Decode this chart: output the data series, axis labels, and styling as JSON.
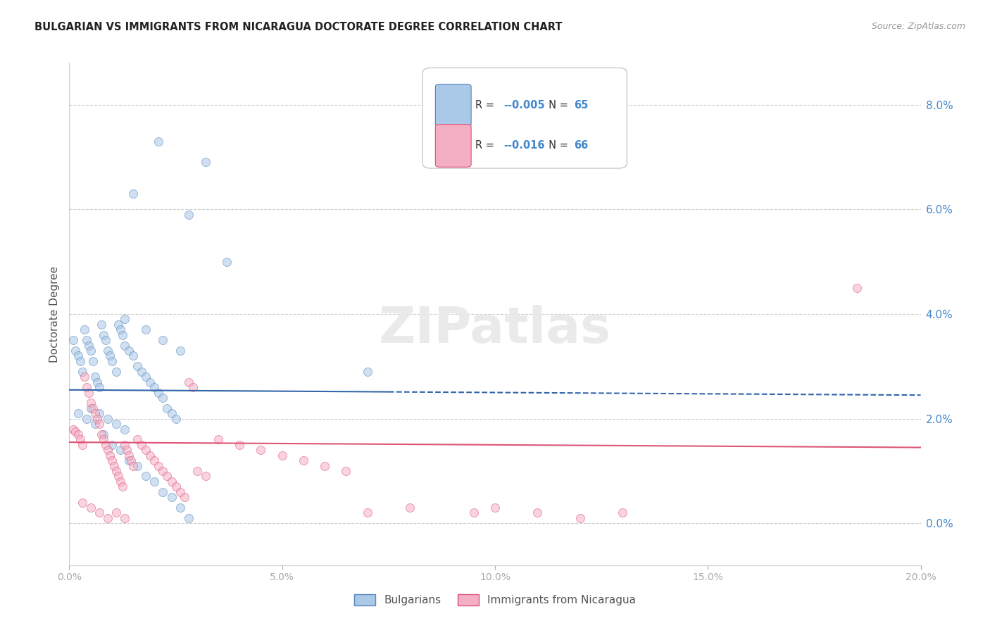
{
  "title": "BULGARIAN VS IMMIGRANTS FROM NICARAGUA DOCTORATE DEGREE CORRELATION CHART",
  "source": "Source: ZipAtlas.com",
  "ylabel": "Doctorate Degree",
  "legend_label1": "Bulgarians",
  "legend_label2": "Immigrants from Nicaragua",
  "color_blue": "#aac8e8",
  "color_pink": "#f5afc5",
  "color_blue_edge": "#5588bb",
  "color_pink_edge": "#dd5577",
  "color_line_blue": "#3366aa",
  "color_line_pink": "#dd5577",
  "title_color": "#222222",
  "source_color": "#999999",
  "axis_label_color": "#555555",
  "right_tick_color": "#4488cc",
  "watermark_color": "#e8e8e8",
  "xmin": 0.0,
  "xmax": 20.0,
  "ymin": -0.8,
  "ymax": 8.8,
  "ytick_vals": [
    0.0,
    2.0,
    4.0,
    6.0,
    8.0
  ],
  "xtick_vals": [
    0.0,
    5.0,
    10.0,
    15.0,
    20.0
  ],
  "blue_line_y0": 2.55,
  "blue_line_y1": 2.45,
  "pink_line_y0": 1.55,
  "pink_line_y1": 1.45,
  "blue_solid_end_x": 7.5,
  "marker_size": 75,
  "alpha": 0.55,
  "background_color": "#ffffff",
  "grid_color": "#cccccc",
  "blue_scatter_x": [
    2.1,
    3.2,
    1.5,
    2.8,
    3.7,
    0.1,
    0.15,
    0.2,
    0.25,
    0.3,
    0.35,
    0.4,
    0.45,
    0.5,
    0.55,
    0.6,
    0.65,
    0.7,
    0.75,
    0.8,
    0.85,
    0.9,
    0.95,
    1.0,
    1.1,
    1.15,
    1.2,
    1.25,
    1.3,
    1.4,
    1.5,
    1.6,
    1.7,
    1.8,
    1.9,
    2.0,
    2.1,
    2.2,
    2.3,
    2.4,
    2.5,
    1.3,
    1.8,
    2.2,
    2.6,
    0.5,
    0.7,
    0.9,
    1.1,
    1.3,
    7.0,
    0.2,
    0.4,
    0.6,
    0.8,
    1.0,
    1.2,
    1.4,
    1.6,
    1.8,
    2.0,
    2.2,
    2.4,
    2.6,
    2.8
  ],
  "blue_scatter_y": [
    7.3,
    6.9,
    6.3,
    5.9,
    5.0,
    3.5,
    3.3,
    3.2,
    3.1,
    2.9,
    3.7,
    3.5,
    3.4,
    3.3,
    3.1,
    2.8,
    2.7,
    2.6,
    3.8,
    3.6,
    3.5,
    3.3,
    3.2,
    3.1,
    2.9,
    3.8,
    3.7,
    3.6,
    3.4,
    3.3,
    3.2,
    3.0,
    2.9,
    2.8,
    2.7,
    2.6,
    2.5,
    2.4,
    2.2,
    2.1,
    2.0,
    3.9,
    3.7,
    3.5,
    3.3,
    2.2,
    2.1,
    2.0,
    1.9,
    1.8,
    2.9,
    2.1,
    2.0,
    1.9,
    1.7,
    1.5,
    1.4,
    1.2,
    1.1,
    0.9,
    0.8,
    0.6,
    0.5,
    0.3,
    0.1
  ],
  "pink_scatter_x": [
    0.1,
    0.15,
    0.2,
    0.25,
    0.3,
    0.35,
    0.4,
    0.45,
    0.5,
    0.55,
    0.6,
    0.65,
    0.7,
    0.75,
    0.8,
    0.85,
    0.9,
    0.95,
    1.0,
    1.05,
    1.1,
    1.15,
    1.2,
    1.25,
    1.3,
    1.35,
    1.4,
    1.45,
    1.5,
    1.6,
    1.7,
    1.8,
    1.9,
    2.0,
    2.1,
    2.2,
    2.3,
    2.4,
    2.5,
    2.6,
    2.7,
    2.8,
    2.9,
    3.0,
    3.2,
    3.5,
    4.0,
    4.5,
    5.0,
    5.5,
    6.0,
    6.5,
    7.0,
    8.0,
    9.5,
    10.0,
    11.0,
    12.0,
    13.0,
    0.3,
    0.5,
    0.7,
    0.9,
    1.1,
    1.3,
    18.5
  ],
  "pink_scatter_y": [
    1.8,
    1.75,
    1.7,
    1.6,
    1.5,
    2.8,
    2.6,
    2.5,
    2.3,
    2.2,
    2.1,
    2.0,
    1.9,
    1.7,
    1.6,
    1.5,
    1.4,
    1.3,
    1.2,
    1.1,
    1.0,
    0.9,
    0.8,
    0.7,
    1.5,
    1.4,
    1.3,
    1.2,
    1.1,
    1.6,
    1.5,
    1.4,
    1.3,
    1.2,
    1.1,
    1.0,
    0.9,
    0.8,
    0.7,
    0.6,
    0.5,
    2.7,
    2.6,
    1.0,
    0.9,
    1.6,
    1.5,
    1.4,
    1.3,
    1.2,
    1.1,
    1.0,
    0.2,
    0.3,
    0.2,
    0.3,
    0.2,
    0.1,
    0.2,
    0.4,
    0.3,
    0.2,
    0.1,
    0.2,
    0.1,
    4.5
  ],
  "r1": "-0.005",
  "n1": "65",
  "r2": "-0.016",
  "n2": "66"
}
